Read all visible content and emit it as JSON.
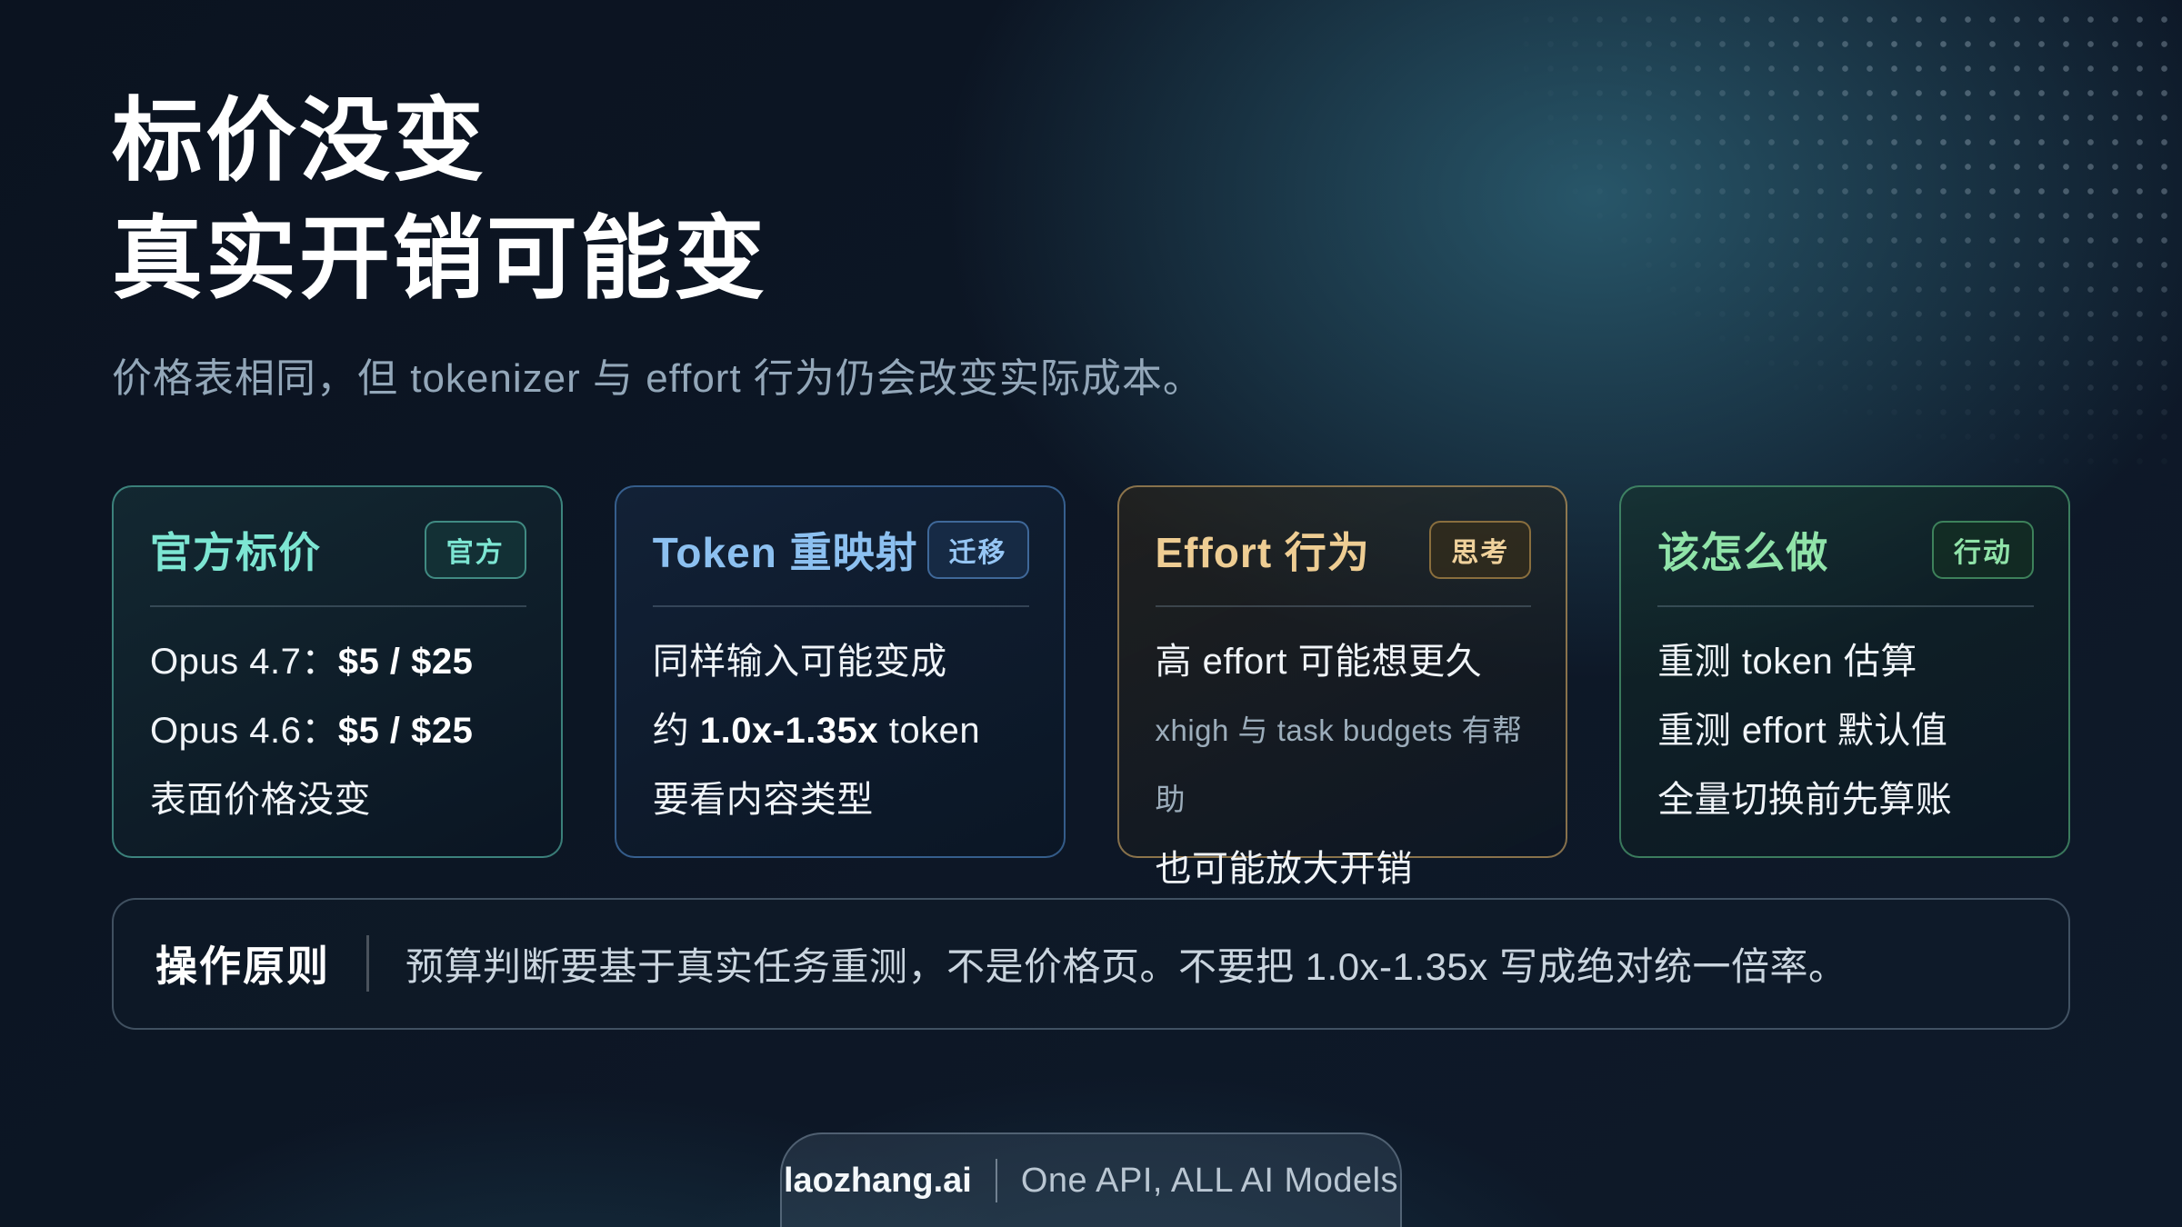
{
  "slide": {
    "title_line1": "标价没变",
    "title_line2": "真实开销可能变",
    "subtitle": "价格表相同，但 tokenizer 与 effort 行为仍会改变实际成本。"
  },
  "cards": [
    {
      "title": "官方标价",
      "badge": "官方",
      "accent": "#7de6d3",
      "lines": [
        {
          "segments": [
            {
              "t": "Opus 4.7："
            },
            {
              "t": "$5 / $25",
              "bold": true
            }
          ]
        },
        {
          "segments": [
            {
              "t": "Opus 4.6："
            },
            {
              "t": "$5 / $25",
              "bold": true
            }
          ]
        },
        {
          "segments": [
            {
              "t": "表面价格没变"
            }
          ]
        }
      ]
    },
    {
      "title": "Token 重映射",
      "badge": "迁移",
      "accent": "#8cc0f0",
      "lines": [
        {
          "segments": [
            {
              "t": "同样输入可能变成"
            }
          ]
        },
        {
          "segments": [
            {
              "t": "约 "
            },
            {
              "t": "1.0x-1.35x",
              "bold": true
            },
            {
              "t": " token"
            }
          ]
        },
        {
          "segments": [
            {
              "t": "要看内容类型"
            }
          ]
        }
      ]
    },
    {
      "title": "Effort 行为",
      "badge": "思考",
      "accent": "#eecd93",
      "lines": [
        {
          "segments": [
            {
              "t": "高 effort 可能想更久"
            }
          ]
        },
        {
          "small": true,
          "segments": [
            {
              "t": "xhigh 与 task budgets 有帮助"
            }
          ]
        },
        {
          "segments": [
            {
              "t": "也可能放大开销"
            }
          ]
        }
      ]
    },
    {
      "title": "该怎么做",
      "badge": "行动",
      "accent": "#90e3a9",
      "lines": [
        {
          "segments": [
            {
              "t": "重测 token 估算"
            }
          ]
        },
        {
          "segments": [
            {
              "t": "重测 effort 默认值"
            }
          ]
        },
        {
          "segments": [
            {
              "t": "全量切换前先算账"
            }
          ]
        }
      ]
    }
  ],
  "principle": {
    "label": "操作原则",
    "text": "预算判断要基于真实任务重测，不是价格页。不要把 1.0x-1.35x 写成绝对统一倍率。"
  },
  "footer": {
    "brand": "laozhang.ai",
    "separator": "|",
    "tagline": "One API, ALL AI Models"
  }
}
